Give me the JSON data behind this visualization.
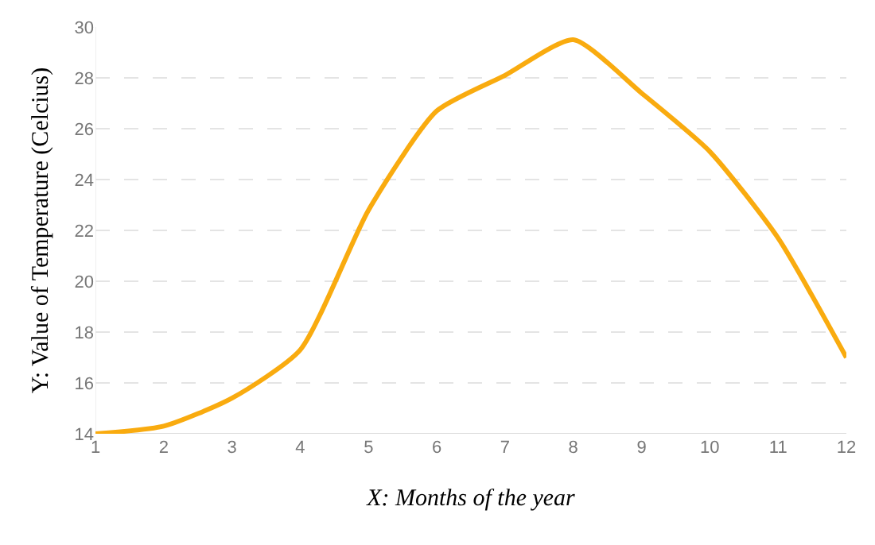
{
  "chart_data": {
    "type": "line",
    "xlabel": "X: Months of the year",
    "ylabel": "Y: Value of Temperature (Celcius)",
    "x": [
      1,
      2,
      3,
      4,
      5,
      6,
      7,
      8,
      9,
      10,
      11,
      12
    ],
    "series": [
      {
        "color": "#f9ab0f",
        "values": [
          14.0,
          14.3,
          15.4,
          17.3,
          22.8,
          26.7,
          28.1,
          29.5,
          27.4,
          25.1,
          21.7,
          17.0
        ]
      }
    ],
    "xlim": [
      1,
      12
    ],
    "xticks": [
      1,
      2,
      3,
      4,
      5,
      6,
      7,
      8,
      9,
      10,
      11,
      12
    ],
    "ylim": [
      14,
      30
    ],
    "yticks": [
      14,
      16,
      18,
      20,
      22,
      24,
      26,
      28,
      30
    ],
    "grid": "y",
    "marker": "none",
    "line_style": "solid"
  }
}
